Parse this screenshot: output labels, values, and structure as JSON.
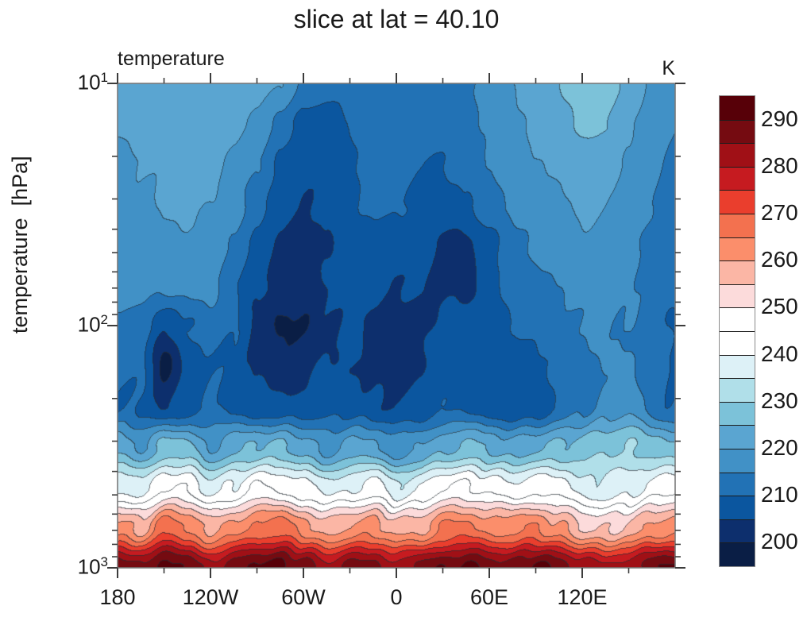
{
  "chart_data": {
    "type": "heatmap",
    "subtype": "filled-contour-pressure-longitude-slice",
    "title": "slice at lat = 40.10",
    "left_header": "temperature",
    "right_header": "K",
    "ylabel": "temperature  [hPa]",
    "xlabel": "",
    "y_axis": {
      "scale": "log",
      "range_hpa": [
        10,
        1000
      ],
      "major_ticks": [
        {
          "p": 10,
          "base": "10",
          "exp": "1"
        },
        {
          "p": 100,
          "base": "10",
          "exp": "2"
        },
        {
          "p": 1000,
          "base": "10",
          "exp": "3"
        }
      ],
      "minor_mantissas": [
        2,
        3,
        4,
        5,
        6,
        7,
        8,
        9
      ],
      "minor_decades": [
        10,
        100
      ]
    },
    "x_axis": {
      "range_deg": [
        -180,
        180
      ],
      "major_ticks": [
        {
          "deg": -180,
          "label": "180"
        },
        {
          "deg": -120,
          "label": "120W"
        },
        {
          "deg": -60,
          "label": "60W"
        },
        {
          "deg": 0,
          "label": "0"
        },
        {
          "deg": 60,
          "label": "60E"
        },
        {
          "deg": 120,
          "label": "120E"
        }
      ],
      "minor_ticks_deg": [
        -150,
        -90,
        -30,
        30,
        90,
        150
      ]
    },
    "levels_start": 195,
    "levels_step": 5,
    "palette": [
      "#0a1e45",
      "#0d2f6d",
      "#0b569f",
      "#2272b5",
      "#4191c6",
      "#5aa5d1",
      "#7cc2d9",
      "#b0dfe9",
      "#ddf1f7",
      "#ffffff",
      "#ffffff",
      "#fcdbdb",
      "#fbb6a5",
      "#fb8e6b",
      "#f3714f",
      "#ea3e2d",
      "#c61b20",
      "#a01016",
      "#750b11",
      "#570008"
    ],
    "colorbar_labels": [
      "290",
      "280",
      "270",
      "260",
      "250",
      "240",
      "230",
      "220",
      "210",
      "200"
    ],
    "lons": [
      -180,
      -165,
      -150,
      -135,
      -120,
      -105,
      -90,
      -75,
      -60,
      -45,
      -30,
      -15,
      0,
      15,
      30,
      45,
      60,
      75,
      90,
      105,
      120,
      135,
      150,
      165,
      180
    ],
    "pressures_hpa": [
      10,
      15,
      22,
      32,
      46,
      68,
      100,
      150,
      220,
      320,
      460,
      680,
      1000
    ],
    "temperature_K": [
      [
        222,
        222,
        222,
        222,
        222,
        222,
        222,
        220,
        214,
        212,
        212,
        212,
        212,
        212,
        213,
        214,
        217,
        220,
        222,
        225,
        228,
        228,
        224,
        219,
        217
      ],
      [
        220,
        221,
        222,
        222,
        222,
        221,
        219,
        213,
        208,
        207,
        210,
        212,
        212,
        211,
        211,
        213,
        216,
        219,
        221,
        223,
        226,
        225,
        221,
        217,
        215
      ],
      [
        219,
        220,
        221,
        222,
        221,
        219,
        215,
        209,
        206,
        206,
        210,
        212,
        211,
        210,
        210,
        212,
        215,
        218,
        220,
        221,
        223,
        222,
        219,
        216,
        214
      ],
      [
        218,
        219,
        220,
        221,
        220,
        217,
        212,
        207,
        205,
        206,
        209,
        211,
        210,
        209,
        208,
        209,
        213,
        216,
        218,
        219,
        221,
        220,
        218,
        215,
        213
      ],
      [
        217,
        218,
        218,
        219,
        218,
        214,
        209,
        204,
        202,
        205,
        208,
        209,
        208,
        207,
        204,
        204,
        208,
        213,
        216,
        217,
        219,
        218,
        217,
        214,
        212
      ],
      [
        216,
        217,
        216,
        217,
        216,
        211,
        206,
        202,
        202,
        205,
        207,
        207,
        205,
        206,
        204,
        204,
        208,
        212,
        214,
        215,
        217,
        217,
        216,
        213,
        211
      ],
      [
        214,
        213,
        205,
        210,
        213,
        210,
        204,
        199,
        200,
        204,
        206,
        204,
        202,
        204,
        206,
        206,
        208,
        210,
        212,
        213,
        215,
        216,
        215,
        212,
        210
      ],
      [
        212,
        210,
        199,
        206,
        210,
        208,
        204,
        202,
        203,
        206,
        206,
        203,
        201,
        204,
        207,
        207,
        207,
        207,
        208,
        211,
        213,
        215,
        216,
        212,
        209
      ],
      [
        210,
        209,
        204,
        208,
        210,
        209,
        207,
        206,
        207,
        208,
        208,
        206,
        205,
        207,
        209,
        209,
        208,
        205,
        206,
        211,
        214,
        217,
        219,
        213,
        210
      ],
      [
        223,
        220,
        227,
        226,
        220,
        223,
        226,
        226,
        222,
        218,
        221,
        222,
        217,
        219,
        224,
        226,
        224,
        222,
        224,
        226,
        227,
        229,
        231,
        227,
        226
      ],
      [
        240,
        236,
        246,
        244,
        237,
        241,
        245,
        245,
        241,
        237,
        240,
        242,
        236,
        239,
        245,
        246,
        243,
        241,
        244,
        242,
        238,
        236,
        238,
        242,
        244
      ],
      [
        262,
        258,
        268,
        266,
        257,
        262,
        267,
        267,
        263,
        257,
        261,
        263,
        257,
        259,
        265,
        266,
        264,
        263,
        265,
        261,
        255,
        254,
        256,
        261,
        264
      ],
      [
        287,
        288,
        292,
        288,
        283,
        287,
        292,
        292,
        288,
        282,
        286,
        288,
        282,
        285,
        290,
        291,
        288,
        287,
        291,
        289,
        283,
        281,
        284,
        288,
        290
      ]
    ],
    "legend_position": "right",
    "grid": false,
    "frame_color": "#7a7a7a",
    "tick_color": "#3c3c3c"
  }
}
